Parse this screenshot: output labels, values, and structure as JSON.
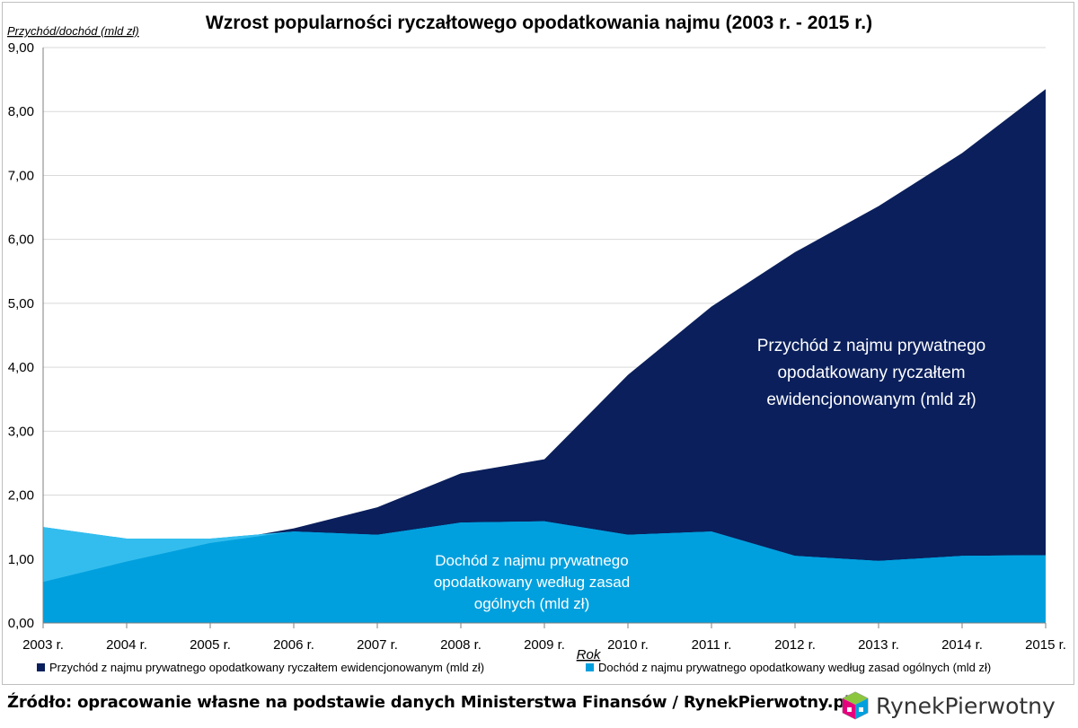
{
  "chart_data": {
    "type": "area",
    "stacked": true,
    "title": "Wzrost popularności ryczałtowego opodatkowania najmu (2003 r. - 2015 r.)",
    "ylabel": "Przychód/dochód (mld zł)",
    "xlabel": "Rok",
    "ylim": [
      0,
      9
    ],
    "yticks": [
      "0,00",
      "1,00",
      "2,00",
      "3,00",
      "4,00",
      "5,00",
      "6,00",
      "7,00",
      "8,00",
      "9,00"
    ],
    "x": [
      "2003 r.",
      "2004 r.",
      "2005 r.",
      "2006 r.",
      "2007 r.",
      "2008 r.",
      "2009 r.",
      "2010 r.",
      "2011 r.",
      "2012 r.",
      "2013 r.",
      "2014 r.",
      "2015 r."
    ],
    "grid": true,
    "legend_position": "bottom",
    "series": [
      {
        "name": "Dochód z najmu prywatnego opodatkowany według zasad ogólnych (mld zł)",
        "values": [
          1.5,
          1.32,
          1.32,
          1.43,
          1.38,
          1.57,
          1.59,
          1.38,
          1.43,
          1.05,
          0.97,
          1.05,
          1.06
        ],
        "color": "#00A0DE"
      },
      {
        "name": "Przychód z najmu prywatnego opodatkowany ryczałtem ewidencjonowanym (mld zł)",
        "values": [
          0.64,
          0.96,
          1.25,
          1.48,
          1.81,
          2.34,
          2.56,
          3.88,
          4.95,
          5.8,
          6.52,
          7.35,
          8.35
        ],
        "color": "#0A1F5C"
      }
    ],
    "overlap_color": "#33BDEE",
    "annotations": {
      "ryczalt": [
        "Przychód z najmu prywatnego",
        "opodatkowany ryczałtem",
        "ewidencjonowanym (mld zł)"
      ],
      "ogolne": [
        "Dochód z najmu prywatnego",
        "opodatkowany według zasad",
        "ogólnych (mld zł)"
      ]
    }
  },
  "footer": {
    "source": "Źródło: opracowanie własne na podstawie danych Ministerstwa Finansów / RynekPierwotny.pl",
    "brand": "RynekPierwotny",
    "brand_icon": "house-cube-logo-icon"
  }
}
